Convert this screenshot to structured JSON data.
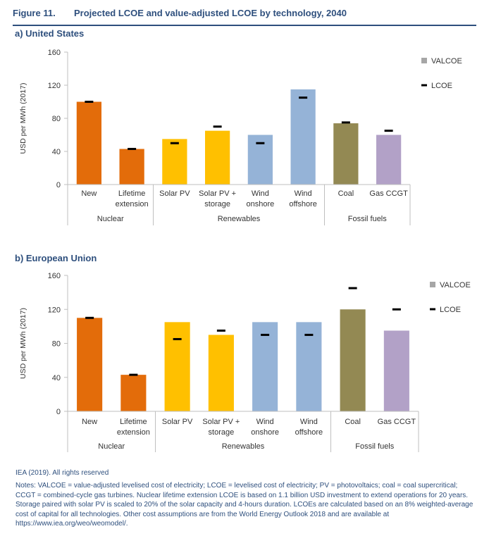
{
  "figure": {
    "number": "Figure 11.",
    "title": "Projected LCOE and value-adjusted LCOE by technology, 2040"
  },
  "colors": {
    "nuclear": "#e36c0a",
    "renewables_solar": "#ffc000",
    "renewables_wind": "#95b3d7",
    "coal": "#938953",
    "gas": "#b2a1c7",
    "valcoe_legend": "#a6a6a6",
    "lcoe_marker": "#000000",
    "title_blue": "#2e4f7d"
  },
  "legend": {
    "valcoe": "VALCOE",
    "lcoe": "LCOE"
  },
  "chart_data": [
    {
      "type": "bar",
      "panel_title": "a) United States",
      "ylabel": "USD per MWh (2017)",
      "ylim": [
        0,
        160
      ],
      "yticks": [
        0,
        40,
        80,
        120,
        160
      ],
      "categories": [
        [
          "New"
        ],
        [
          "Lifetime",
          "extension"
        ],
        [
          "Solar PV"
        ],
        [
          "Solar PV +",
          "storage"
        ],
        [
          "Wind",
          "onshore"
        ],
        [
          "Wind",
          "offshore"
        ],
        [
          "Coal"
        ],
        [
          "Gas CCGT"
        ]
      ],
      "groups": [
        {
          "name": "Nuclear",
          "count": 2
        },
        {
          "name": "Renewables",
          "count": 4
        },
        {
          "name": "Fossil fuels",
          "count": 2
        }
      ],
      "series": [
        {
          "name": "VALCOE",
          "values": [
            100,
            43,
            55,
            65,
            60,
            115,
            74,
            60
          ]
        },
        {
          "name": "LCOE",
          "values": [
            100,
            43,
            50,
            70,
            50,
            105,
            75,
            65
          ]
        }
      ],
      "bar_colors": [
        "nuclear",
        "nuclear",
        "renewables_solar",
        "renewables_solar",
        "renewables_wind",
        "renewables_wind",
        "coal",
        "gas"
      ],
      "legend_position": "top-right"
    },
    {
      "type": "bar",
      "panel_title": "b) European Union",
      "ylabel": "USD per MWh (2017)",
      "ylim": [
        0,
        160
      ],
      "yticks": [
        0,
        40,
        80,
        120,
        160
      ],
      "categories": [
        [
          "New"
        ],
        [
          "Lifetime",
          "extension"
        ],
        [
          "Solar PV"
        ],
        [
          "Solar PV +",
          "storage"
        ],
        [
          "Wind",
          "onshore"
        ],
        [
          "Wind",
          "offshore"
        ],
        [
          "Coal"
        ],
        [
          "Gas CCGT"
        ]
      ],
      "groups": [
        {
          "name": "Nuclear",
          "count": 2
        },
        {
          "name": "Renewables",
          "count": 4
        },
        {
          "name": "Fossil fuels",
          "count": 2
        }
      ],
      "series": [
        {
          "name": "VALCOE",
          "values": [
            110,
            43,
            105,
            90,
            105,
            105,
            120,
            95
          ]
        },
        {
          "name": "LCOE",
          "values": [
            110,
            43,
            85,
            95,
            90,
            90,
            145,
            120
          ]
        }
      ],
      "bar_colors": [
        "nuclear",
        "nuclear",
        "renewables_solar",
        "renewables_solar",
        "renewables_wind",
        "renewables_wind",
        "coal",
        "gas"
      ],
      "legend_position": "top-right"
    }
  ],
  "footer": {
    "credit": "IEA (2019). All rights reserved",
    "notes": "Notes: VALCOE = value-adjusted levelised cost of electricity; LCOE = levelised cost of electricity; PV = photovoltaics; coal = coal supercritical; CCGT = combined-cycle gas turbines. Nuclear lifetime extension LCOE is based on 1.1 billion USD investment to extend operations for 20 years. Storage paired with solar PV is scaled to 20% of the solar capacity and 4-hours duration. LCOEs are calculated based on an 8% weighted-average cost of capital for all technologies. Other cost assumptions are from the World Energy Outlook 2018 and are available at https://www.iea.org/weo/weomodel/."
  }
}
